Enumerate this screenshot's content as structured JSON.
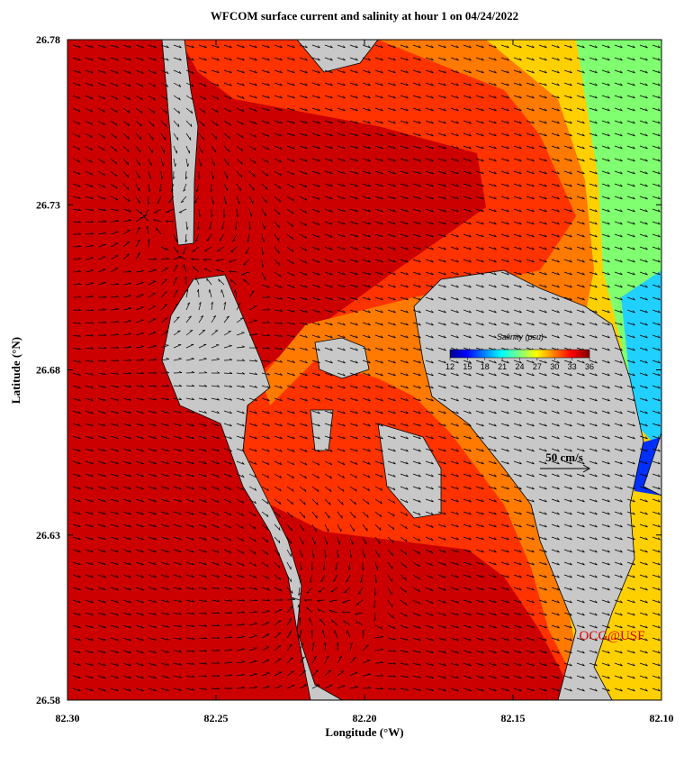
{
  "map": {
    "title": "WFCOM surface current and salinity at hour 1 on 04/24/2022",
    "x_label": "Longitude (°W)",
    "y_label": "Latitude (°N)",
    "xlim": [
      82.3,
      82.1
    ],
    "ylim": [
      26.58,
      26.78
    ],
    "xticks": [
      {
        "value": 82.3,
        "label": "82.30"
      },
      82.25,
      {
        "value": 82.2,
        "label": "82.20"
      },
      82.15,
      {
        "value": 82.1,
        "label": "82.10"
      }
    ],
    "yticks": [
      26.58,
      26.63,
      26.68,
      26.73,
      26.78
    ],
    "colorbar": {
      "label": "Salinity (psu)",
      "lim": [
        12,
        36
      ],
      "ticks": [
        12,
        15,
        18,
        21,
        24,
        27,
        30,
        33,
        36
      ]
    },
    "scale_label": "50 cm/s",
    "credit": "OCG@USF"
  }
}
